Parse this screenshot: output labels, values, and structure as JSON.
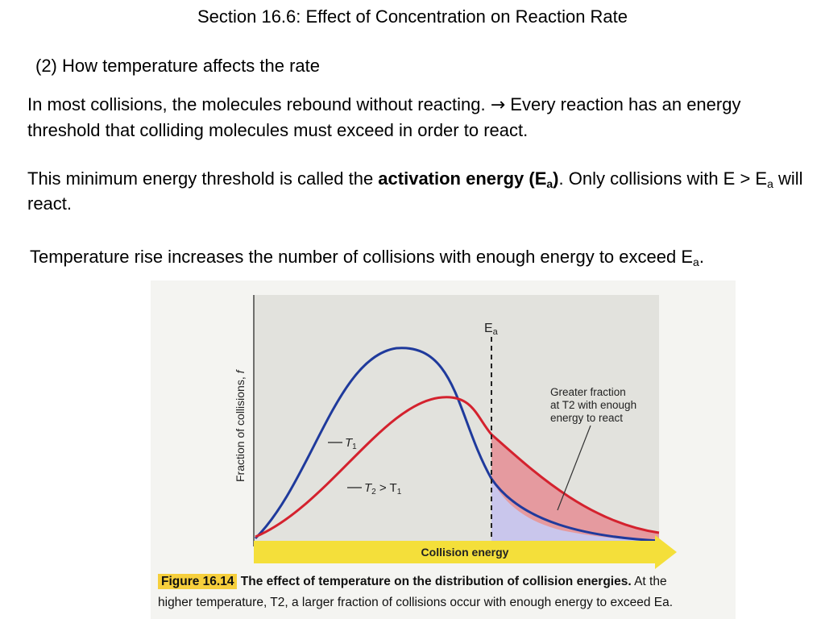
{
  "header": {
    "title": "Section 16.6:  Effect of Concentration on Reaction Rate",
    "subtitle": "(2) How temperature affects the rate"
  },
  "paragraph1": {
    "text_a": "In most collisions, the molecules rebound without reacting. ",
    "arrow": "→",
    "text_b": " Every reaction has an energy threshold that colliding molecules must exceed in order to react."
  },
  "paragraph2": {
    "text_a": "This minimum energy threshold is called the ",
    "bold_text": "activation energy (E",
    "bold_sub": "a",
    "bold_close": ")",
    "text_b": ".  Only collisions with E > E",
    "sub": "a",
    "text_c": " will react."
  },
  "paragraph3": {
    "text": "Temperature rise increases the number of collisions with enough energy to exceed E",
    "sub": "a",
    "end": "."
  },
  "figure": {
    "y_axis_label": "Fraction of collisions, ",
    "y_axis_var": "f",
    "x_axis_label": "Collision energy",
    "ea_label": "E",
    "ea_sub": "a",
    "t1_label": "T",
    "t1_sub": "1",
    "t2_label_a": "T",
    "t2_sub": "2",
    "t2_label_b": " > T",
    "t2_sub_b": "1",
    "annotation": [
      "Greater fraction",
      "at T2 with enough",
      "energy to react"
    ],
    "caption_label": "Figure 16.14",
    "caption_bold": " The effect of temperature on the distribution of collision energies.",
    "caption_rest_a": " At the",
    "caption_line2": "higher temperature, T2, a larger fraction of collisions occur with enough energy to exceed Ea.",
    "colors": {
      "t1_curve": "#1f3a9c",
      "t2_curve": "#d4222e",
      "ea_region_red": "#e59a9f",
      "ea_region_blue": "#c9c6ec",
      "arrow_bar": "#f4df3a",
      "plot_bg": "#e2e2dd"
    }
  }
}
